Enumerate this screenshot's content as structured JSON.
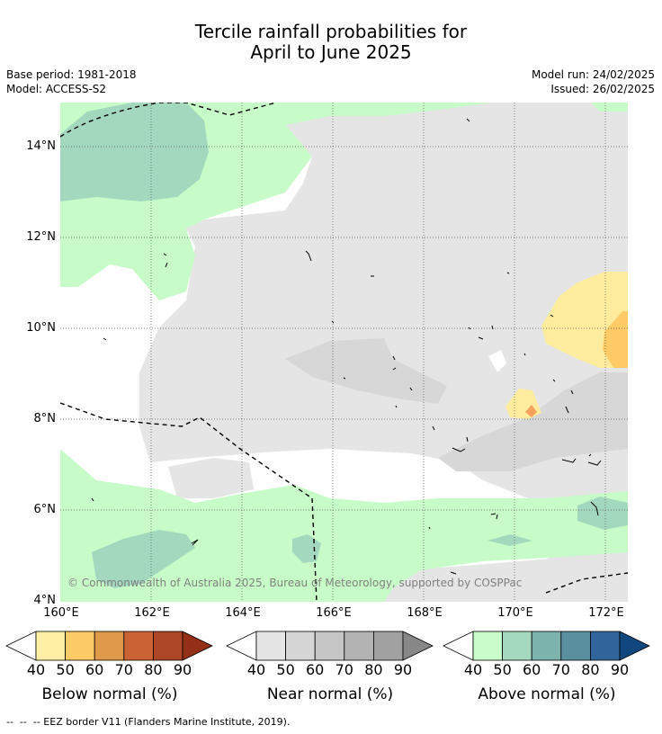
{
  "title": {
    "line1": "Tercile rainfall probabilities for",
    "line2": "April to June 2025"
  },
  "meta": {
    "base_period": "Base period: 1981-2018",
    "model": "Model: ACCESS-S2",
    "model_run": "Model run: 24/02/2025",
    "issued": "Issued: 26/02/2025"
  },
  "map": {
    "lat_labels": [
      "14°N",
      "12°N",
      "10°N",
      "8°N",
      "6°N",
      "4°N"
    ],
    "lon_labels": [
      "160°E",
      "162°E",
      "164°E",
      "166°E",
      "168°E",
      "170°E",
      "172°E"
    ],
    "lon_range": [
      160,
      172.5
    ],
    "lat_range": [
      4,
      15
    ],
    "copyright": "© Commonwealth of Australia 2025, Bureau of Meteorology, supported by COSPPac",
    "colors": {
      "background_near_normal_light": "#e5e5e5",
      "near_normal_50": "#d7d7d7",
      "above_normal_40": "#c7fcc8",
      "above_normal_50": "#a3d8bf",
      "below_normal_40": "#feec9e",
      "below_normal_50": "#fecb66",
      "below_normal_60": "#f5a25e",
      "eez_line": "#000000"
    }
  },
  "colorbars": {
    "tick_labels": [
      "40",
      "50",
      "60",
      "70",
      "80",
      "90"
    ],
    "below": {
      "title": "Below normal (%)",
      "colors": [
        "#fff0a5",
        "#fdcc66",
        "#e0984b",
        "#cb6234",
        "#ad4727",
        "#953018"
      ]
    },
    "near": {
      "title": "Near normal (%)",
      "colors": [
        "#e5e5e5",
        "#d6d6d6",
        "#c6c6c6",
        "#b3b3b3",
        "#a1a1a1",
        "#878787"
      ]
    },
    "above": {
      "title": "Above normal (%)",
      "colors": [
        "#c9fbcb",
        "#a4d9bf",
        "#7db5ae",
        "#5a8fa0",
        "#30649a",
        "#10477f"
      ]
    }
  },
  "footer": "--  --  -- EEZ border V11 (Flanders Marine Institute, 2019)."
}
